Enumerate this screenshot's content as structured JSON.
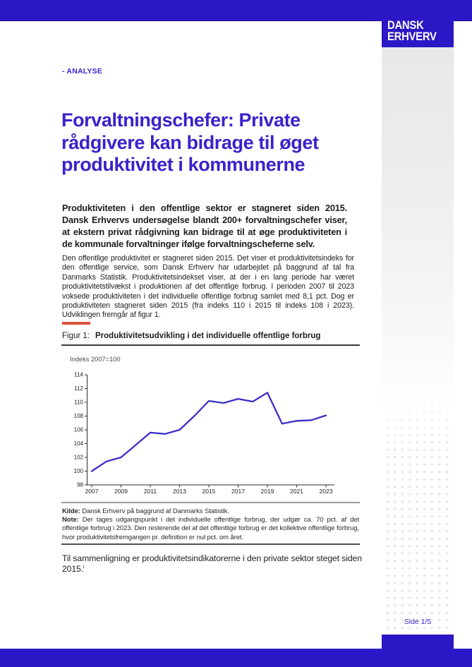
{
  "colors": {
    "brand_blue": "#2c17c6",
    "heading_blue": "#3823cb",
    "accent_red": "#e0513b",
    "chart_line": "#3b2ec9",
    "text_dark": "#1d1d1b",
    "rule_gray": "#9c9c9c",
    "rule_dark": "#4f4f4f",
    "dot_gray": "#e7e7e7",
    "side_gray": "#e8e8e8"
  },
  "brand": {
    "logo_line1": "DANSK",
    "logo_line2": "ERHVERV"
  },
  "header": {
    "kicker": "- ANALYSE"
  },
  "article": {
    "title_lines": [
      "Forvaltningschefer: Private",
      "rådgivere kan bidrage til øget",
      "produktivitet i kommunerne"
    ],
    "intro": "Produktiviteten i den offentlige sektor er stagneret siden 2015. Dansk Erhvervs undersøgelse blandt 200+ forvaltningschefer viser, at ekstern privat rådgivning kan bidrage til at øge produktiviteten i de kommunale forvaltninger ifølge forvaltningscheferne selv.",
    "body": "Den offentlige produktivitet er stagneret siden 2015. Det viser et produktivitetsindeks for den offentlige service, som Dansk Erhverv har udarbejdet på baggrund af tal fra Danmarks Statistik. Produktivitetsindekset viser, at der i en lang periode har været produktivitetstilvækst i produktionen af det offentlige forbrug. I perioden 2007 til 2023 voksede produktiviteten i det individuelle offentlige forbrug samlet med 8,1 pct. Dog er produktiviteten stagneret siden 2015 (fra indeks 110 i 2015 til indeks 108 i 2023). Udviklingen fremgår af figur 1.",
    "closing": "Til sammenligning er produktivitetsindikatorerne i den private sektor steget siden 2015.",
    "closing_footnote_marker": "i"
  },
  "figure": {
    "label": "Figur 1:",
    "title": "Produktivitetsudvikling i det individuelle offentlige forbrug",
    "unit_label": "Indeks 2007=100",
    "kilde_label": "Kilde:",
    "kilde_text": " Dansk Erhverv på baggrund af Danmarks Statistik.",
    "note_label": "Note:",
    "note_text": " Der tages udgangspunkt i det individuelle offentlige forbrug, der udgør ca. 70 pct. af det offentlige forbrug i 2023. Den resterende del af det offentlige forbrug er det kollektive offentlige forbrug, hvor produktivitetsfremgangen pr. definition er nul pct. om året."
  },
  "chart_data": {
    "type": "line",
    "title": "Produktivitetsudvikling i det individuelle offentlige forbrug",
    "unit_label": "Indeks 2007=100",
    "x": [
      2007,
      2008,
      2009,
      2010,
      2011,
      2012,
      2013,
      2014,
      2015,
      2016,
      2017,
      2018,
      2019,
      2020,
      2021,
      2022,
      2023
    ],
    "values": [
      100,
      101.4,
      102,
      103.8,
      105.6,
      105.4,
      106,
      108,
      110.2,
      109.9,
      110.5,
      110.1,
      111.4,
      106.9,
      107.3,
      107.4,
      108.1
    ],
    "ylim": [
      98,
      114
    ],
    "ytick_step": 2,
    "yticks": [
      98,
      100,
      102,
      104,
      106,
      108,
      110,
      112,
      114
    ],
    "xtick_labels": [
      "2007",
      "2009",
      "2011",
      "2013",
      "2015",
      "2017",
      "2019",
      "2021",
      "2023"
    ],
    "xtick_interval": 2,
    "grid": false,
    "legend": "none",
    "line_color": "#3b2ec9"
  },
  "footer": {
    "page_label": "Side 1/5"
  }
}
